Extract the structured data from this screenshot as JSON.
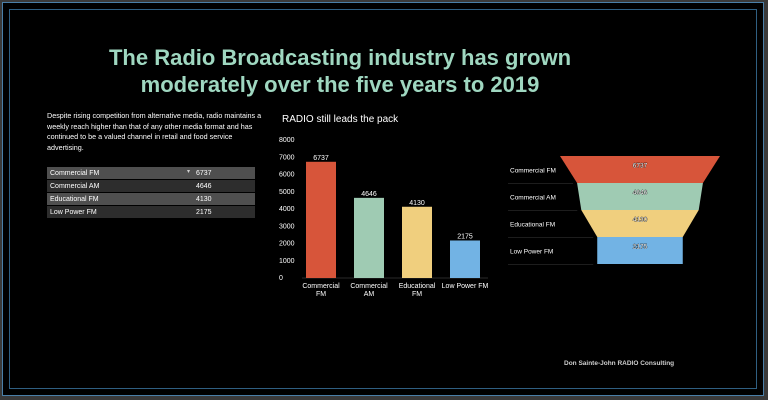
{
  "slide": {
    "title": "The Radio Broadcasting industry has grown moderately over the five years to 2019",
    "description": "Despite rising competition from alternative media, radio maintains a weekly reach higher than that of any other media format and has continued to be a valued channel in retail and food service advertising.",
    "credit": "Don Sainte-John RADIO Consulting"
  },
  "table": {
    "rows": [
      {
        "name": "Commercial FM",
        "value": "6737"
      },
      {
        "name": "Commercial AM",
        "value": "4646"
      },
      {
        "name": "Educational FM",
        "value": "4130"
      },
      {
        "name": "Low Power FM",
        "value": "2175"
      }
    ],
    "filter_icon": "chevron-down-icon"
  },
  "chart_data": [
    {
      "type": "bar",
      "title": "RADIO still leads the pack",
      "categories": [
        "Commercial FM",
        "Commercial AM",
        "Educational FM",
        "Low Power FM"
      ],
      "values": [
        6737,
        4646,
        4130,
        2175
      ],
      "colors": [
        "#d7553a",
        "#9fcbb3",
        "#f0cf7e",
        "#72b3e4"
      ],
      "ylim": [
        0,
        8000
      ],
      "yticks": [
        "0",
        "1000",
        "2000",
        "3000",
        "4000",
        "5000",
        "6000",
        "7000",
        "8000"
      ],
      "xlabel": "",
      "ylabel": "",
      "grid": false
    },
    {
      "type": "funnel",
      "categories": [
        "Commercial FM",
        "Commercial AM",
        "Educational FM",
        "Low Power FM"
      ],
      "values": [
        6737,
        4646,
        4130,
        2175
      ],
      "colors": [
        "#d7553a",
        "#9fcbb3",
        "#f0cf7e",
        "#72b3e4"
      ]
    }
  ]
}
